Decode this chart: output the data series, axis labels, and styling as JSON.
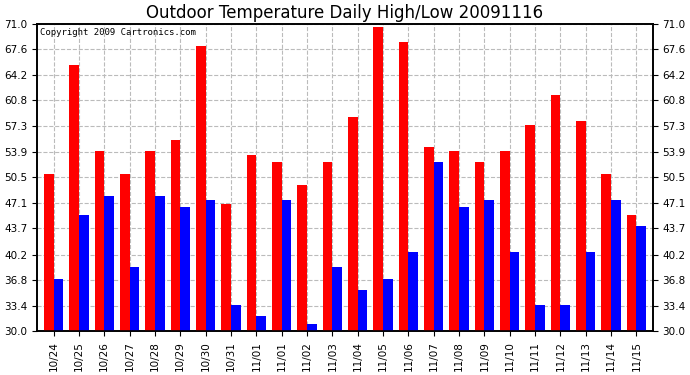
{
  "title": "Outdoor Temperature Daily High/Low 20091116",
  "copyright": "Copyright 2009 Cartronics.com",
  "categories": [
    "10/24",
    "10/25",
    "10/26",
    "10/27",
    "10/28",
    "10/29",
    "10/30",
    "10/31",
    "11/01",
    "11/01",
    "11/02",
    "11/03",
    "11/04",
    "11/05",
    "11/06",
    "11/07",
    "11/08",
    "11/09",
    "11/10",
    "11/11",
    "11/12",
    "11/13",
    "11/14",
    "11/15"
  ],
  "highs": [
    51.0,
    65.5,
    54.0,
    51.0,
    54.0,
    55.5,
    68.0,
    47.0,
    53.5,
    52.5,
    49.5,
    52.5,
    58.5,
    70.5,
    68.5,
    54.5,
    54.0,
    52.5,
    54.0,
    57.5,
    61.5,
    58.0,
    51.0,
    45.5
  ],
  "lows": [
    37.0,
    45.5,
    48.0,
    38.5,
    48.0,
    46.5,
    47.5,
    33.5,
    32.0,
    47.5,
    31.0,
    38.5,
    35.5,
    37.0,
    40.5,
    52.5,
    46.5,
    47.5,
    40.5,
    33.5,
    33.5,
    40.5,
    47.5,
    44.0
  ],
  "bar_color_high": "#ff0000",
  "bar_color_low": "#0000ff",
  "bg_color": "#ffffff",
  "grid_color": "#bbbbbb",
  "ylim_min": 30.0,
  "ylim_max": 71.0,
  "yticks": [
    30.0,
    33.4,
    36.8,
    40.2,
    43.7,
    47.1,
    50.5,
    53.9,
    57.3,
    60.8,
    64.2,
    67.6,
    71.0
  ],
  "bar_width": 0.38,
  "title_fontsize": 12,
  "tick_fontsize": 7.5,
  "copyright_fontsize": 6.5
}
